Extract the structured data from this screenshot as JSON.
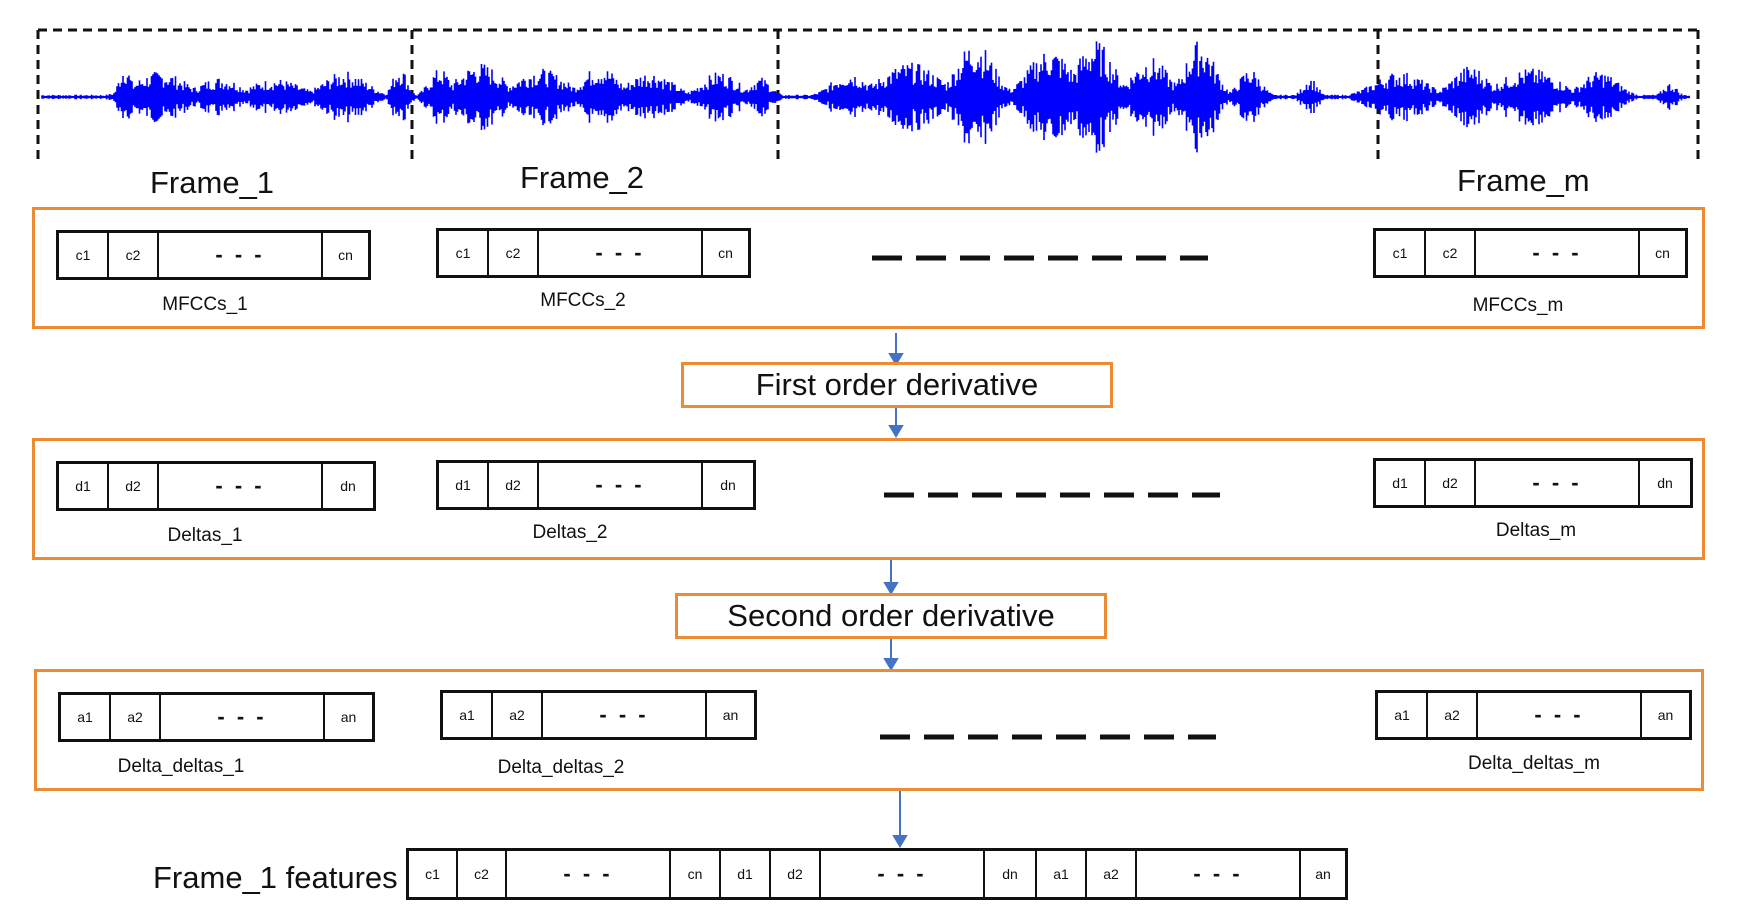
{
  "frames": [
    "Frame_1",
    "Frame_2",
    "Frame_m"
  ],
  "steps": {
    "first": "First order derivative",
    "second": "Second order derivative"
  },
  "groups": [
    {
      "vectors": [
        {
          "label": "MFCCs_1",
          "cells": [
            "c1",
            "c2",
            "- - -",
            "cn"
          ]
        },
        {
          "label": "MFCCs_2",
          "cells": [
            "c1",
            "c2",
            "- - -",
            "cn"
          ]
        },
        {
          "label": "MFCCs_m",
          "cells": [
            "c1",
            "c2",
            "- - -",
            "cn"
          ]
        }
      ]
    },
    {
      "vectors": [
        {
          "label": "Deltas_1",
          "cells": [
            "d1",
            "d2",
            "- - -",
            "dn"
          ]
        },
        {
          "label": "Deltas_2",
          "cells": [
            "d1",
            "d2",
            "- - -",
            "dn"
          ]
        },
        {
          "label": "Deltas_m",
          "cells": [
            "d1",
            "d2",
            "- - -",
            "dn"
          ]
        }
      ]
    },
    {
      "vectors": [
        {
          "label": "Delta_deltas_1",
          "cells": [
            "a1",
            "a2",
            "- - -",
            "an"
          ]
        },
        {
          "label": "Delta_deltas_2",
          "cells": [
            "a1",
            "a2",
            "- - -",
            "an"
          ]
        },
        {
          "label": "Delta_deltas_m",
          "cells": [
            "a1",
            "a2",
            "- - -",
            "an"
          ]
        }
      ]
    }
  ],
  "features": {
    "label": "Frame_1 features",
    "cells": [
      "c1",
      "c2",
      "- - -",
      "cn",
      "d1",
      "d2",
      "- - -",
      "dn",
      "a1",
      "a2",
      "- - -",
      "an"
    ]
  },
  "colors": {
    "waveform": "#0000FF",
    "box_border": "#ED8B34",
    "arrow": "#4472C4"
  }
}
